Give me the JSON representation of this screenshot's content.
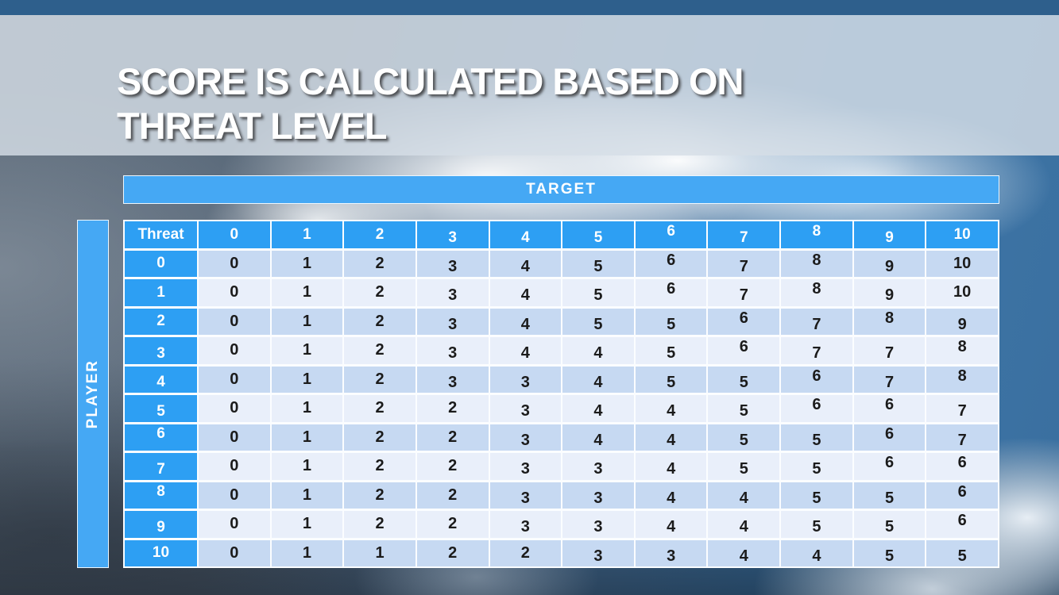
{
  "slide": {
    "title_line1": "SCORE IS CALCULATED BASED ON",
    "title_line2": "THREAT LEVEL"
  },
  "table": {
    "target_label": "TARGET",
    "player_label": "PLAYER",
    "corner_label": "Threat",
    "column_headers": [
      "0",
      "1",
      "2",
      "3",
      "4",
      "5",
      "6",
      "7",
      "8",
      "9",
      "10"
    ],
    "row_headers": [
      "0",
      "1",
      "2",
      "3",
      "4",
      "5",
      "6",
      "7",
      "8",
      "9",
      "10"
    ],
    "rows": [
      [
        0,
        1,
        2,
        3,
        4,
        5,
        6,
        7,
        8,
        9,
        10
      ],
      [
        0,
        1,
        2,
        3,
        4,
        5,
        6,
        7,
        8,
        9,
        10
      ],
      [
        0,
        1,
        2,
        3,
        4,
        5,
        5,
        6,
        7,
        8,
        9
      ],
      [
        0,
        1,
        2,
        3,
        4,
        4,
        5,
        6,
        7,
        7,
        8
      ],
      [
        0,
        1,
        2,
        3,
        3,
        4,
        5,
        5,
        6,
        7,
        8
      ],
      [
        0,
        1,
        2,
        2,
        3,
        4,
        4,
        5,
        6,
        6,
        7
      ],
      [
        0,
        1,
        2,
        2,
        3,
        4,
        4,
        5,
        5,
        6,
        7
      ],
      [
        0,
        1,
        2,
        2,
        3,
        3,
        4,
        5,
        5,
        6,
        6
      ],
      [
        0,
        1,
        2,
        2,
        3,
        3,
        4,
        4,
        5,
        5,
        6
      ],
      [
        0,
        1,
        2,
        2,
        3,
        3,
        4,
        4,
        5,
        5,
        6
      ],
      [
        0,
        1,
        1,
        2,
        2,
        3,
        3,
        4,
        4,
        5,
        5
      ]
    ]
  },
  "colors": {
    "accent_blue": "#2d9ff3",
    "banner_blue": "#45a8f4",
    "row_even": "#c6d9f2",
    "row_odd": "#e9effa",
    "top_bar": "#2e5f8c"
  }
}
